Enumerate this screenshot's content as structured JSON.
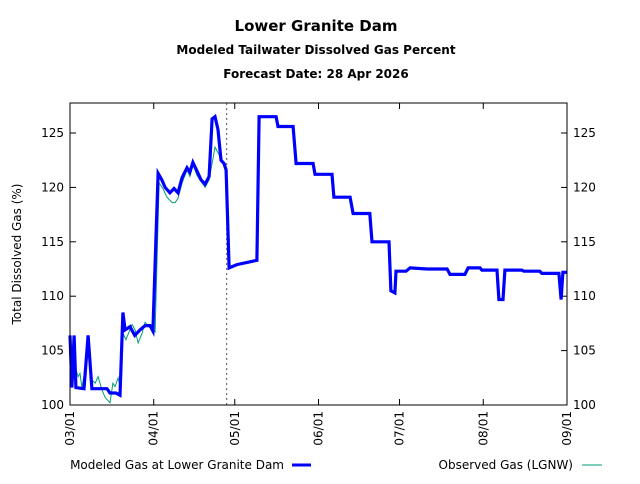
{
  "chart_data": {
    "type": "line",
    "title": "Lower Granite Dam",
    "subtitle": "Modeled Tailwater Dissolved Gas Percent",
    "forecast_label": "Forecast Date: 28 Apr 2026",
    "xlabel": "",
    "ylabel": "Total Dissolved Gas (%)",
    "x_units": "days since 03/01",
    "xlim": [
      0,
      184
    ],
    "ylim": [
      100,
      128
    ],
    "x_ticks": [
      {
        "day": 0,
        "label": "03/01"
      },
      {
        "day": 31,
        "label": "04/01"
      },
      {
        "day": 61,
        "label": "05/01"
      },
      {
        "day": 92,
        "label": "06/01"
      },
      {
        "day": 122,
        "label": "07/01"
      },
      {
        "day": 153,
        "label": "08/01"
      },
      {
        "day": 184,
        "label": "09/01"
      }
    ],
    "y_ticks": [
      100,
      105,
      110,
      115,
      120,
      125
    ],
    "forecast_day": 58,
    "grid": false,
    "legend_placement": "bottom",
    "series": [
      {
        "name": "Modeled Gas at Lower Granite Dam",
        "color": "#0000ff",
        "points": [
          [
            0,
            106.4
          ],
          [
            0.7,
            101.6
          ],
          [
            1.5,
            106.4
          ],
          [
            2.2,
            101.6
          ],
          [
            5.2,
            101.5
          ],
          [
            6.7,
            106.4
          ],
          [
            8.1,
            101.5
          ],
          [
            13.7,
            101.5
          ],
          [
            14.8,
            101.1
          ],
          [
            17,
            101.1
          ],
          [
            18.5,
            100.9
          ],
          [
            19.6,
            108.5
          ],
          [
            20.4,
            106.9
          ],
          [
            22.2,
            107.2
          ],
          [
            24,
            106.4
          ],
          [
            25.9,
            106.9
          ],
          [
            27.8,
            107.3
          ],
          [
            29.6,
            107.3
          ],
          [
            30.7,
            106.8
          ],
          [
            32.6,
            121.3
          ],
          [
            34,
            120.7
          ],
          [
            35.2,
            120.0
          ],
          [
            37,
            119.5
          ],
          [
            38.5,
            119.9
          ],
          [
            40,
            119.5
          ],
          [
            41.5,
            120.9
          ],
          [
            43.3,
            121.8
          ],
          [
            44.4,
            121.4
          ],
          [
            45.5,
            122.3
          ],
          [
            47,
            121.5
          ],
          [
            48.5,
            120.7
          ],
          [
            50,
            120.3
          ],
          [
            51.5,
            121.0
          ],
          [
            52.6,
            126.3
          ],
          [
            53.7,
            126.5
          ],
          [
            54.8,
            125.3
          ],
          [
            55.9,
            122.5
          ],
          [
            57,
            122.2
          ],
          [
            57.8,
            121.6
          ],
          [
            58.9,
            112.6
          ],
          [
            61.8,
            112.9
          ],
          [
            69.2,
            113.3
          ],
          [
            70,
            126.5
          ],
          [
            76.3,
            126.5
          ],
          [
            77,
            125.6
          ],
          [
            82.6,
            125.6
          ],
          [
            83.7,
            122.2
          ],
          [
            90,
            122.2
          ],
          [
            90.7,
            121.2
          ],
          [
            97,
            121.2
          ],
          [
            97.7,
            119.1
          ],
          [
            103.7,
            119.1
          ],
          [
            104.8,
            117.6
          ],
          [
            111,
            117.6
          ],
          [
            111.8,
            115.0
          ],
          [
            118.1,
            115.0
          ],
          [
            118.8,
            110.5
          ],
          [
            120.3,
            110.3
          ],
          [
            120.7,
            112.3
          ],
          [
            124.4,
            112.3
          ],
          [
            125.9,
            112.6
          ],
          [
            132.2,
            112.5
          ],
          [
            139.6,
            112.5
          ],
          [
            140.7,
            112.0
          ],
          [
            146.2,
            112.0
          ],
          [
            147.4,
            112.6
          ],
          [
            151.8,
            112.6
          ],
          [
            152.5,
            112.4
          ],
          [
            158.1,
            112.4
          ],
          [
            158.8,
            109.7
          ],
          [
            160.3,
            109.7
          ],
          [
            161,
            112.4
          ],
          [
            167.3,
            112.4
          ],
          [
            168,
            112.3
          ],
          [
            173.9,
            112.3
          ],
          [
            174.7,
            112.1
          ],
          [
            181,
            112.1
          ],
          [
            181.8,
            109.7
          ],
          [
            182.5,
            112.2
          ],
          [
            184,
            112.2
          ]
        ]
      },
      {
        "name": "Observed Gas (LGNW)",
        "color": "#009e73",
        "points": [
          [
            0,
            106.6
          ],
          [
            0.7,
            102.0
          ],
          [
            1.9,
            103.5
          ],
          [
            3.0,
            102.6
          ],
          [
            3.7,
            102.9
          ],
          [
            4.4,
            101.6
          ],
          [
            6.7,
            104.8
          ],
          [
            8.1,
            102.3
          ],
          [
            9.3,
            102.0
          ],
          [
            10.4,
            102.6
          ],
          [
            11.8,
            101.4
          ],
          [
            13.0,
            100.7
          ],
          [
            14.8,
            100.2
          ],
          [
            15.9,
            102.0
          ],
          [
            16.7,
            101.7
          ],
          [
            17.8,
            102.5
          ],
          [
            18.5,
            101.7
          ],
          [
            19.6,
            106.6
          ],
          [
            20.7,
            106.0
          ],
          [
            23.0,
            107.4
          ],
          [
            24.1,
            106.9
          ],
          [
            25.2,
            105.7
          ],
          [
            26.7,
            106.6
          ],
          [
            27.8,
            107.6
          ],
          [
            29.6,
            107.1
          ],
          [
            31.5,
            106.7
          ],
          [
            33.0,
            120.4
          ],
          [
            34.4,
            119.9
          ],
          [
            35.9,
            119.1
          ],
          [
            37.8,
            118.6
          ],
          [
            38.9,
            118.6
          ],
          [
            40.0,
            119.0
          ],
          [
            41.5,
            120.4
          ],
          [
            43.3,
            121.6
          ],
          [
            44.4,
            121.0
          ],
          [
            45.5,
            122.1
          ],
          [
            47.0,
            121.1
          ],
          [
            48.9,
            120.4
          ],
          [
            50.0,
            120.0
          ],
          [
            51.5,
            120.7
          ],
          [
            53.7,
            123.7
          ],
          [
            55.2,
            123.0
          ],
          [
            56.3,
            122.3
          ],
          [
            57.4,
            122.1
          ],
          [
            58.1,
            121.0
          ]
        ]
      }
    ]
  }
}
